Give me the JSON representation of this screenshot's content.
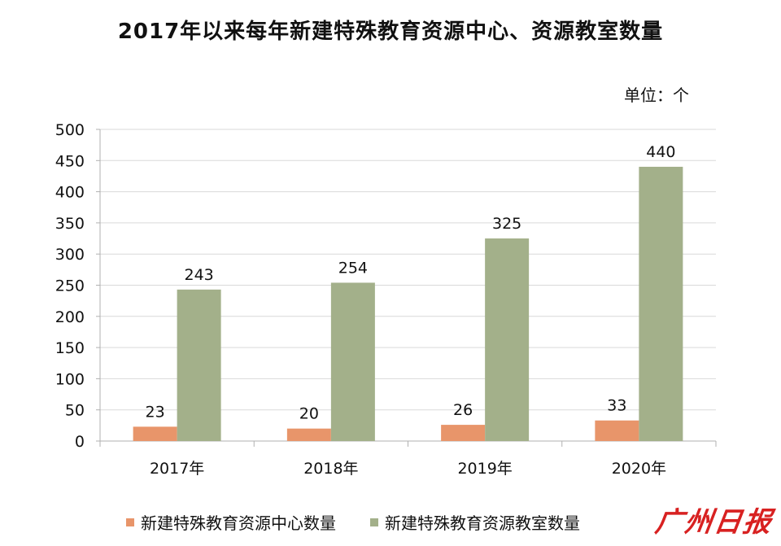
{
  "chart_data": {
    "type": "bar",
    "title": "2017年以来每年新建特殊教育资源中心、资源教室数量",
    "unit_label": "单位：个",
    "categories": [
      "2017年",
      "2018年",
      "2019年",
      "2020年"
    ],
    "series": [
      {
        "name": "新建特殊教育资源中心数量",
        "values": [
          23,
          20,
          26,
          33
        ],
        "color": "#e8956a"
      },
      {
        "name": "新建特殊教育资源教室数量",
        "values": [
          243,
          254,
          325,
          440
        ],
        "color": "#a3b08a"
      }
    ],
    "ylim": [
      0,
      500
    ],
    "yticks": [
      0,
      50,
      100,
      150,
      200,
      250,
      300,
      350,
      400,
      450,
      500
    ],
    "grid": true,
    "legend": "bottom"
  },
  "watermark": "广州日报",
  "colors": {
    "grid": "#d9d9d9",
    "axis": "#b0b0b0",
    "text": "#111111",
    "watermark": "#d82121"
  }
}
